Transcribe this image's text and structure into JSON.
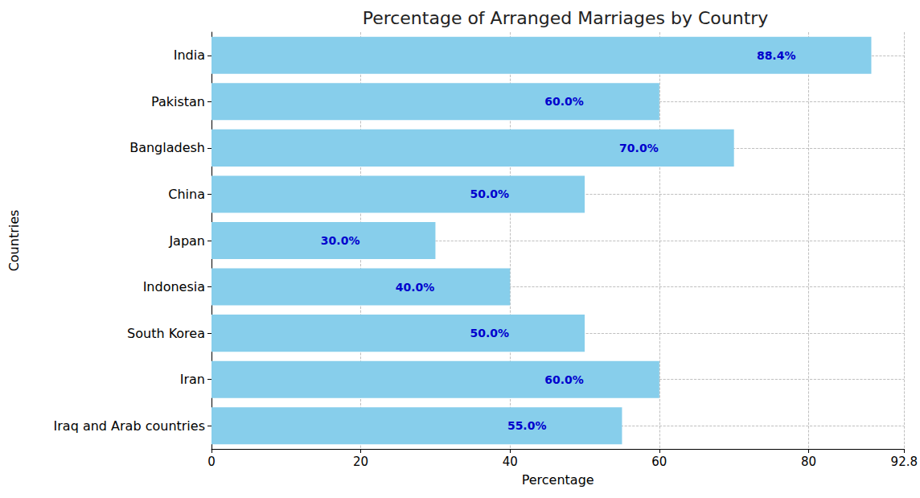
{
  "chart_data": {
    "type": "bar",
    "title": "Percentage of Arranged Marriages by Country",
    "orientation": "horizontal",
    "x_label": "Percentage",
    "y_label": "Countries",
    "categories": [
      "India",
      "Pakistan",
      "Bangladesh",
      "China",
      "Japan",
      "Indonesia",
      "South Korea",
      "Iran",
      "Iraq and Arab countries"
    ],
    "values": [
      88.4,
      60,
      70,
      50,
      30,
      40,
      50,
      60,
      55
    ],
    "value_labels": [
      "88.4%",
      "60.0%",
      "70.0%",
      "50.0%",
      "30.0%",
      "40.0%",
      "50.0%",
      "60.0%",
      "55.0%"
    ],
    "color": "#87ceeb",
    "xlim": [
      0,
      92.8
    ],
    "xticks": [
      0,
      20,
      40,
      60,
      80
    ],
    "grid": true,
    "data_labels": true
  }
}
